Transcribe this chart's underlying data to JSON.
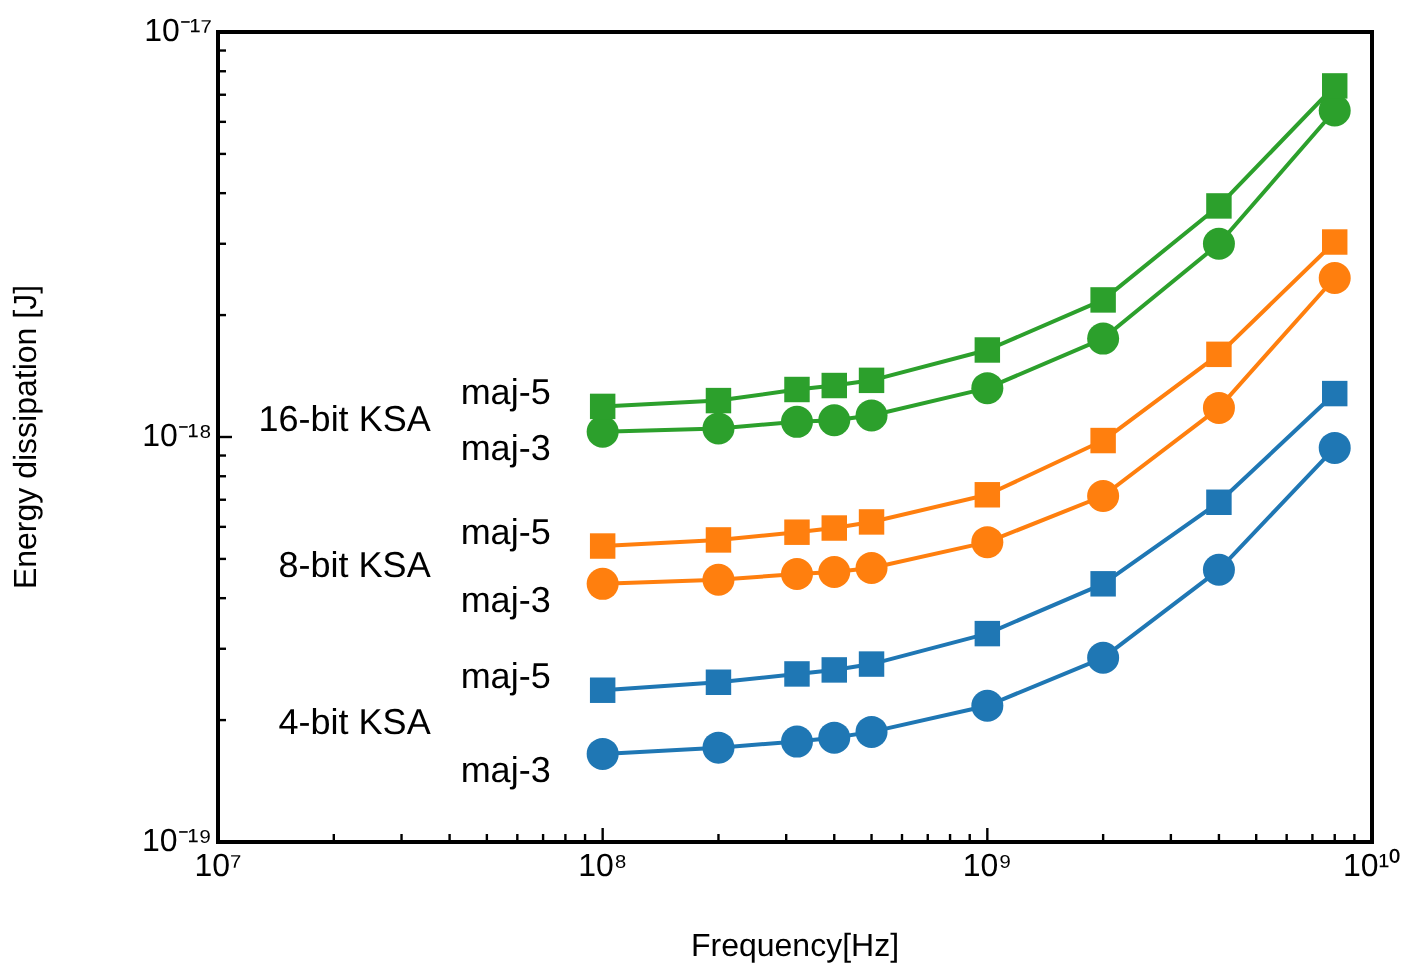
{
  "chart_data": {
    "type": "line",
    "xlabel": "Frequency[Hz]",
    "ylabel": "Energy dissipation [J]",
    "log": "xy",
    "grid": false,
    "legend": false,
    "x": [
      100000000.0,
      200000000.0,
      320000000.0,
      400000000.0,
      500000000.0,
      1000000000.0,
      2000000000.0,
      4000000000.0,
      8000000000.0
    ],
    "xlim": [
      10000000.0,
      10000000000.0
    ],
    "ylim": [
      1e-19,
      1e-17
    ],
    "xticks": [
      {
        "value": 10000000.0,
        "label": "10⁷"
      },
      {
        "value": 20000000.0,
        "label": null
      },
      {
        "value": 30000000.0,
        "label": null
      },
      {
        "value": 40000000.0,
        "label": null
      },
      {
        "value": 50000000.0,
        "label": null
      },
      {
        "value": 60000000.0,
        "label": null
      },
      {
        "value": 70000000.0,
        "label": null
      },
      {
        "value": 80000000.0,
        "label": null
      },
      {
        "value": 90000000.0,
        "label": null
      },
      {
        "value": 100000000.0,
        "label": "10⁸"
      },
      {
        "value": 200000000.0,
        "label": null
      },
      {
        "value": 300000000.0,
        "label": null
      },
      {
        "value": 400000000.0,
        "label": null
      },
      {
        "value": 500000000.0,
        "label": null
      },
      {
        "value": 600000000.0,
        "label": null
      },
      {
        "value": 700000000.0,
        "label": null
      },
      {
        "value": 800000000.0,
        "label": null
      },
      {
        "value": 900000000.0,
        "label": null
      },
      {
        "value": 1000000000.0,
        "label": "10⁹"
      },
      {
        "value": 2000000000.0,
        "label": null
      },
      {
        "value": 3000000000.0,
        "label": null
      },
      {
        "value": 4000000000.0,
        "label": null
      },
      {
        "value": 5000000000.0,
        "label": null
      },
      {
        "value": 6000000000.0,
        "label": null
      },
      {
        "value": 7000000000.0,
        "label": null
      },
      {
        "value": 8000000000.0,
        "label": null
      },
      {
        "value": 9000000000.0,
        "label": null
      },
      {
        "value": 10000000000.0,
        "label": "10¹⁰"
      }
    ],
    "yticks": [
      {
        "value": 1e-19,
        "label": "10⁻¹⁹"
      },
      {
        "value": 2e-19,
        "label": null
      },
      {
        "value": 3e-19,
        "label": null
      },
      {
        "value": 4e-19,
        "label": null
      },
      {
        "value": 5e-19,
        "label": null
      },
      {
        "value": 6e-19,
        "label": null
      },
      {
        "value": 7e-19,
        "label": null
      },
      {
        "value": 8e-19,
        "label": null
      },
      {
        "value": 9e-19,
        "label": null
      },
      {
        "value": 1e-18,
        "label": "10⁻¹⁸"
      },
      {
        "value": 2e-18,
        "label": null
      },
      {
        "value": 3e-18,
        "label": null
      },
      {
        "value": 4e-18,
        "label": null
      },
      {
        "value": 5e-18,
        "label": null
      },
      {
        "value": 6e-18,
        "label": null
      },
      {
        "value": 7e-18,
        "label": null
      },
      {
        "value": 8e-18,
        "label": null
      },
      {
        "value": 9e-18,
        "label": null
      },
      {
        "value": 1e-17,
        "label": "10⁻¹⁷"
      }
    ],
    "annotations": [
      "16-bit KSA",
      "8-bit KSA",
      "4-bit KSA"
    ],
    "series": [
      {
        "name": "maj-5",
        "color": "#2ca02c",
        "marker": "square",
        "values": [
          1.19e-18,
          1.23e-18,
          1.31e-18,
          1.34e-18,
          1.38e-18,
          1.64e-18,
          2.18e-18,
          3.72e-18,
          7.36e-18
        ]
      },
      {
        "name": "maj-3",
        "color": "#2ca02c",
        "marker": "circle",
        "values": [
          1.03e-18,
          1.05e-18,
          1.09e-18,
          1.1e-18,
          1.13e-18,
          1.32e-18,
          1.75e-18,
          3e-18,
          6.4e-18
        ]
      },
      {
        "name": "maj-5",
        "color": "#ff7f0e",
        "marker": "square",
        "values": [
          5.38e-19,
          5.57e-19,
          5.82e-19,
          5.96e-19,
          6.17e-19,
          7.2e-19,
          9.8e-19,
          1.6e-18,
          3.03e-18
        ]
      },
      {
        "name": "maj-3",
        "color": "#ff7f0e",
        "marker": "circle",
        "values": [
          4.34e-19,
          4.44e-19,
          4.59e-19,
          4.64e-19,
          4.75e-19,
          5.5e-19,
          7.15e-19,
          1.18e-18,
          2.47e-18
        ]
      },
      {
        "name": "maj-5",
        "color": "#1f77b4",
        "marker": "square",
        "values": [
          2.37e-19,
          2.48e-19,
          2.6e-19,
          2.66e-19,
          2.75e-19,
          3.27e-19,
          4.34e-19,
          6.9e-19,
          1.28e-18
        ]
      },
      {
        "name": "maj-3",
        "color": "#1f77b4",
        "marker": "circle",
        "values": [
          1.65e-19,
          1.71e-19,
          1.77e-19,
          1.81e-19,
          1.87e-19,
          2.17e-19,
          2.85e-19,
          4.7e-19,
          9.4e-19
        ]
      }
    ]
  }
}
